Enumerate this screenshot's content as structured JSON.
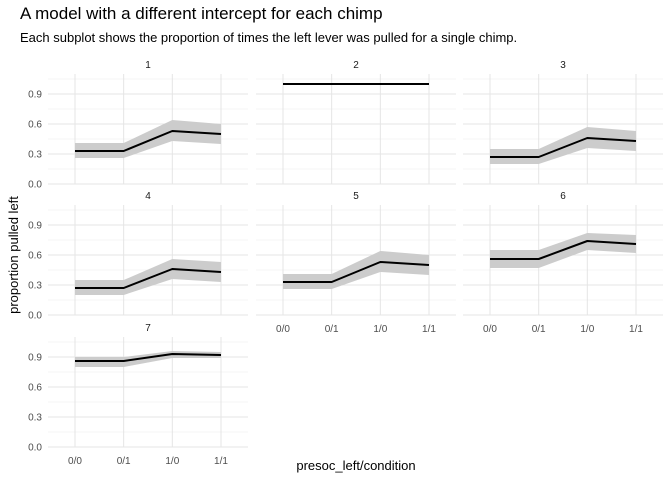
{
  "title": "A model with a different intercept for each chimp",
  "subtitle": "Each subplot shows the proportion of times the left lever was pulled for a single chimp.",
  "chart_data": {
    "type": "line",
    "facet_layout": "3 columns, 3 rows, free x labels on bottom-most panels",
    "categories": [
      "0/0",
      "0/1",
      "1/0",
      "1/1"
    ],
    "xlabel": "presoc_left/condition",
    "ylabel": "proportion pulled left",
    "ylim": [
      0,
      1.1
    ],
    "yticks": [
      "0.0",
      "0.3",
      "0.6",
      "0.9"
    ],
    "grid": true,
    "ribbon_color": "#cccccc",
    "line_color": "#000000",
    "panels": [
      {
        "label": "1",
        "values": [
          0.33,
          0.33,
          0.53,
          0.5
        ],
        "lower": [
          0.26,
          0.26,
          0.43,
          0.4
        ],
        "upper": [
          0.41,
          0.41,
          0.64,
          0.6
        ]
      },
      {
        "label": "2",
        "values": [
          1.0,
          1.0,
          1.0,
          1.0
        ],
        "lower": [
          0.995,
          0.995,
          0.997,
          0.997
        ],
        "upper": [
          1.0,
          1.0,
          1.0,
          1.0
        ]
      },
      {
        "label": "3",
        "values": [
          0.27,
          0.27,
          0.46,
          0.43
        ],
        "lower": [
          0.2,
          0.2,
          0.36,
          0.33
        ],
        "upper": [
          0.35,
          0.35,
          0.57,
          0.53
        ]
      },
      {
        "label": "4",
        "values": [
          0.27,
          0.27,
          0.46,
          0.43
        ],
        "lower": [
          0.2,
          0.2,
          0.36,
          0.33
        ],
        "upper": [
          0.35,
          0.35,
          0.56,
          0.53
        ]
      },
      {
        "label": "5",
        "values": [
          0.33,
          0.33,
          0.53,
          0.5
        ],
        "lower": [
          0.26,
          0.26,
          0.43,
          0.4
        ],
        "upper": [
          0.41,
          0.41,
          0.64,
          0.6
        ]
      },
      {
        "label": "6",
        "values": [
          0.56,
          0.56,
          0.74,
          0.71
        ],
        "lower": [
          0.47,
          0.47,
          0.65,
          0.62
        ],
        "upper": [
          0.65,
          0.65,
          0.82,
          0.8
        ]
      },
      {
        "label": "7",
        "values": [
          0.86,
          0.86,
          0.93,
          0.92
        ],
        "lower": [
          0.8,
          0.8,
          0.89,
          0.89
        ],
        "upper": [
          0.9,
          0.9,
          0.96,
          0.95
        ]
      }
    ]
  }
}
